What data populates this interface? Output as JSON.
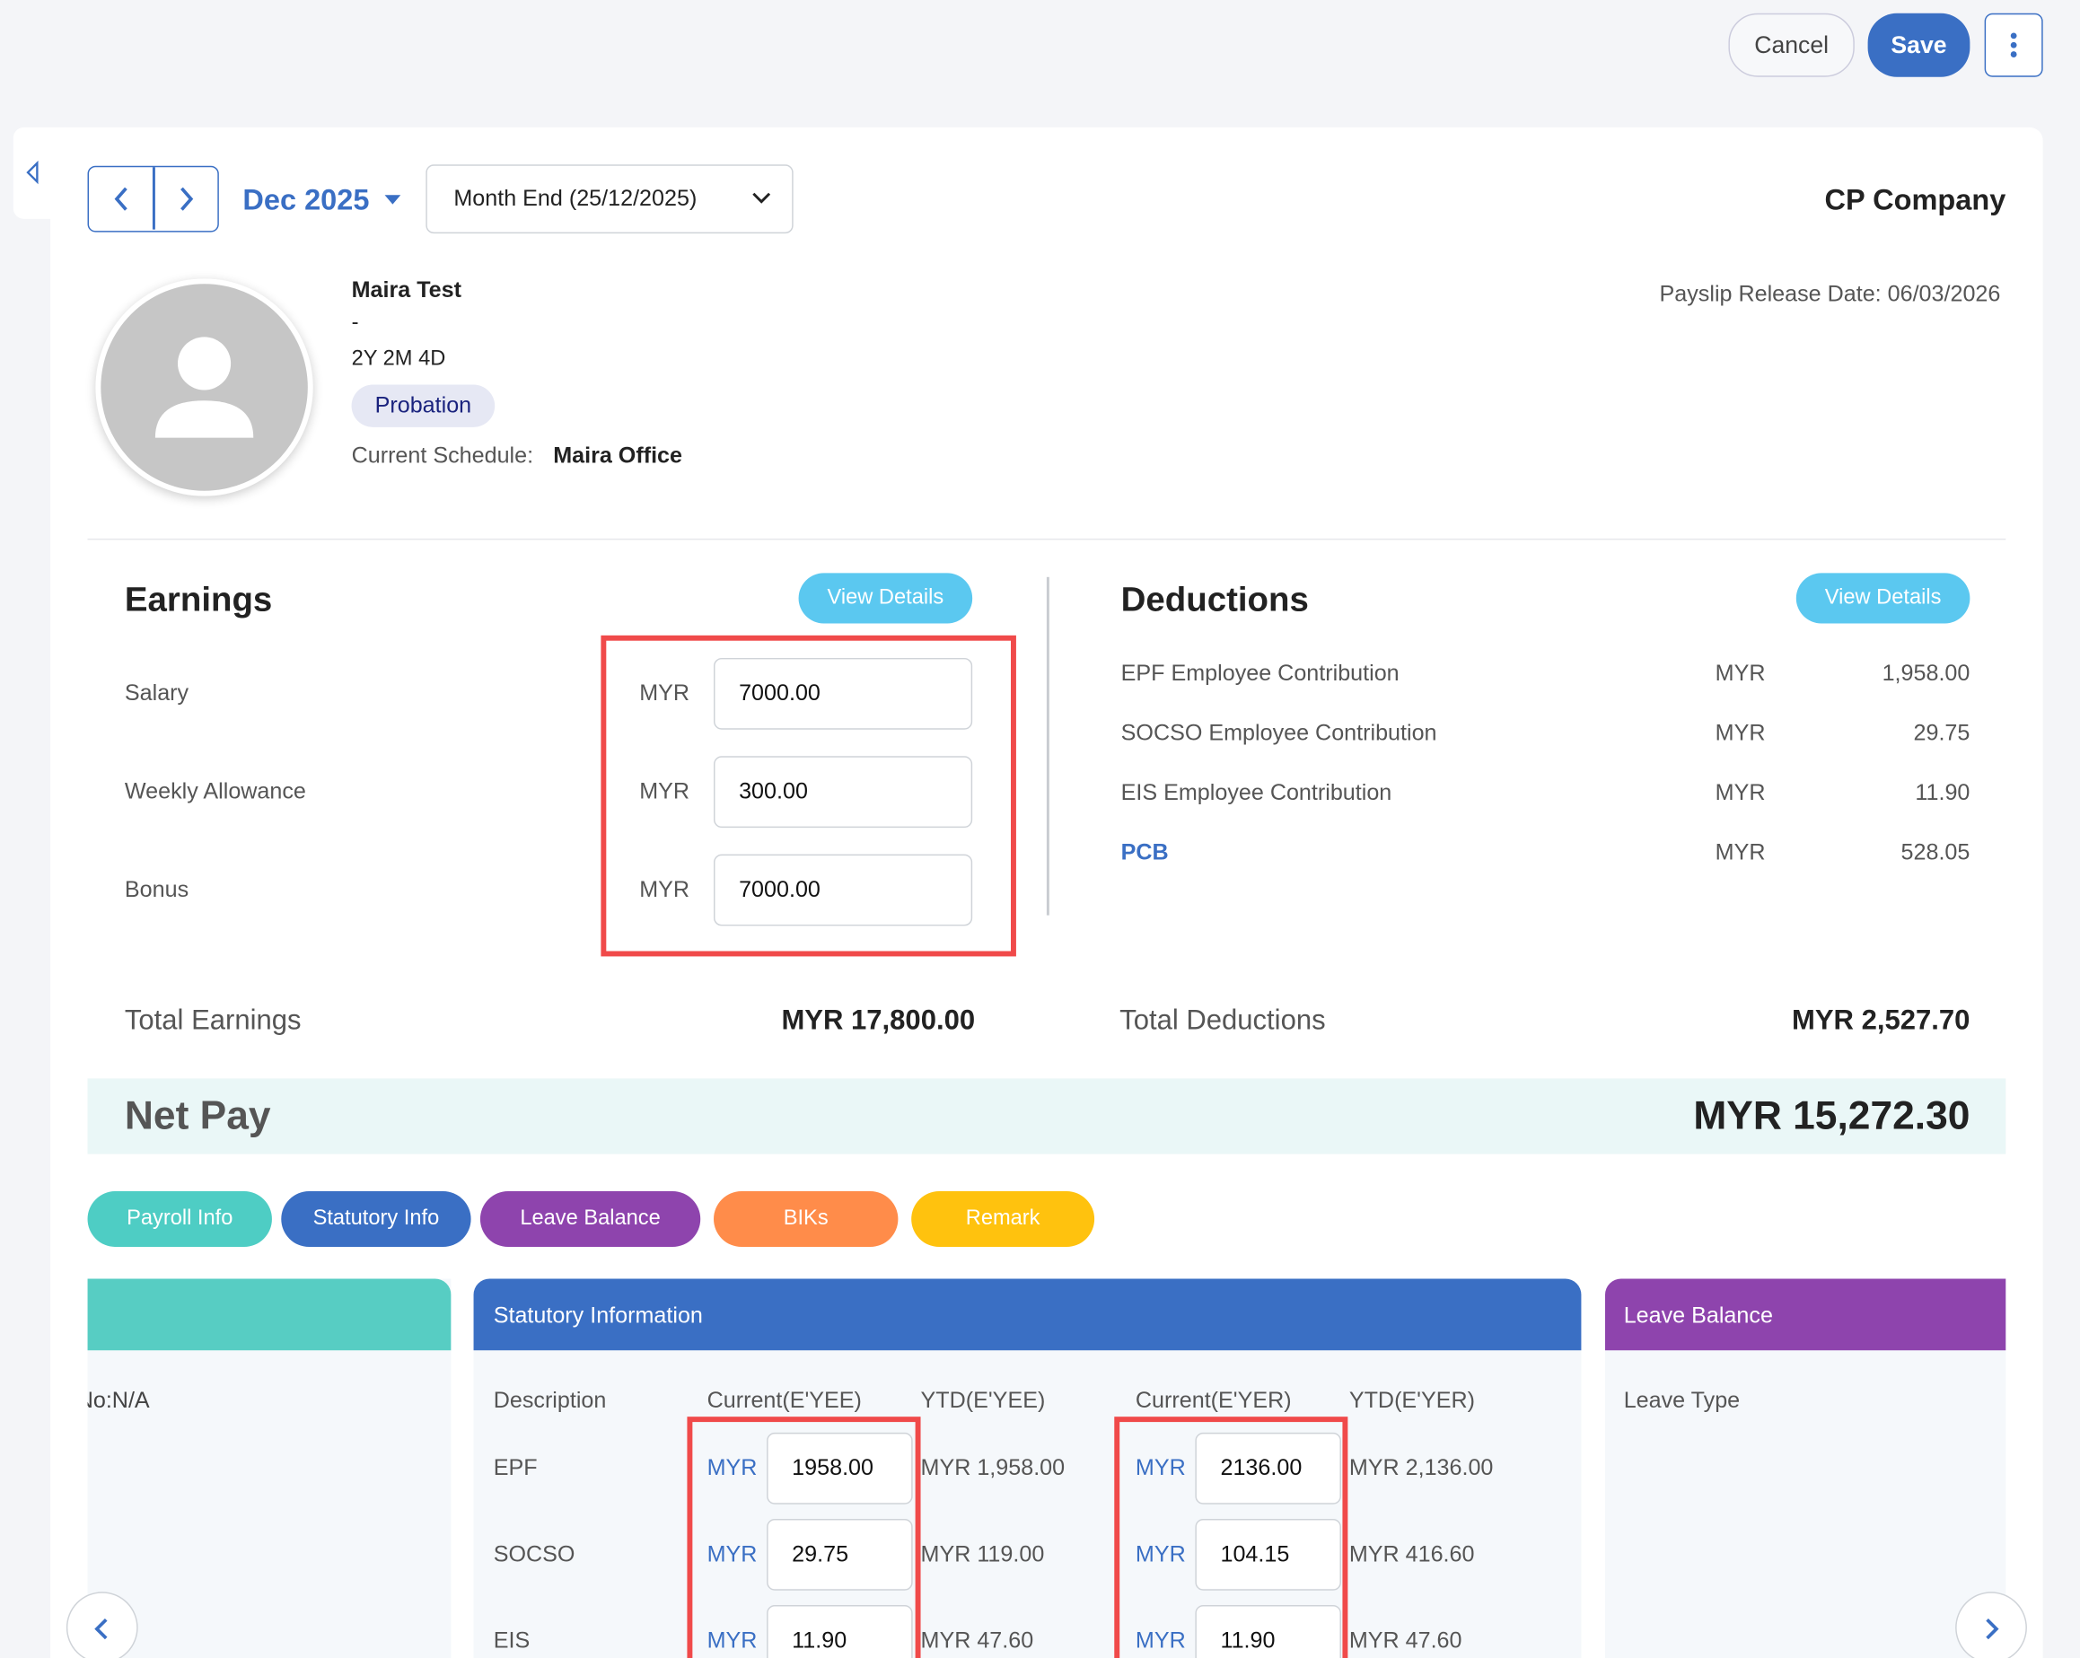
{
  "toolbar": {
    "cancel": "Cancel",
    "save": "Save"
  },
  "period": {
    "month": "Dec 2025",
    "run": "Month End (25/12/2025)"
  },
  "company": "CP Company",
  "release_date": "Payslip Release Date: 06/03/2026",
  "employee": {
    "name": "Maira Test",
    "position": "-",
    "tenure": "2Y 2M 4D",
    "status": "Probation",
    "schedule_label": "Current Schedule:",
    "schedule": "Maira Office"
  },
  "earnings": {
    "title": "Earnings",
    "view": "View Details",
    "items": [
      {
        "label": "Salary",
        "currency": "MYR",
        "value": "7000.00"
      },
      {
        "label": "Weekly Allowance",
        "currency": "MYR",
        "value": "300.00"
      },
      {
        "label": "Bonus",
        "currency": "MYR",
        "value": "7000.00"
      }
    ],
    "total_label": "Total Earnings",
    "total": "MYR 17,800.00"
  },
  "deductions": {
    "title": "Deductions",
    "view": "View Details",
    "items": [
      {
        "label": "EPF Employee Contribution",
        "currency": "MYR",
        "amount": "1,958.00"
      },
      {
        "label": "SOCSO Employee Contribution",
        "currency": "MYR",
        "amount": "29.75"
      },
      {
        "label": "EIS Employee Contribution",
        "currency": "MYR",
        "amount": "11.90"
      },
      {
        "label": "PCB",
        "currency": "MYR",
        "amount": "528.05"
      }
    ],
    "total_label": "Total Deductions",
    "total": "MYR 2,527.70"
  },
  "net_pay": {
    "label": "Net Pay",
    "amount": "MYR 15,272.30"
  },
  "tabs": [
    "Payroll Info",
    "Statutory Info",
    "Leave Balance",
    "BIKs",
    "Remark"
  ],
  "payroll_panel": {
    "text": "No:N/A"
  },
  "statutory": {
    "title": "Statutory Information",
    "headers": [
      "Description",
      "Current(E'YEE)",
      "YTD(E'YEE)",
      "Current(E'YER)",
      "YTD(E'YER)"
    ],
    "rows": [
      {
        "label": "EPF",
        "employee_currency": "MYR",
        "employee": "1958.00",
        "ytd_employee": "MYR 1,958.00",
        "employer_currency": "MYR",
        "employer": "2136.00",
        "ytd_employer": "MYR 2,136.00"
      },
      {
        "label": "SOCSO",
        "employee_currency": "MYR",
        "employee": "29.75",
        "ytd_employee": "MYR 119.00",
        "employer_currency": "MYR",
        "employer": "104.15",
        "ytd_employer": "MYR 416.60"
      },
      {
        "label": "EIS",
        "employee_currency": "MYR",
        "employee": "11.90",
        "ytd_employee": "MYR 47.60",
        "employer_currency": "MYR",
        "employer": "11.90",
        "ytd_employer": "MYR 47.60"
      }
    ]
  },
  "leave": {
    "title": "Leave Balance",
    "header": "Leave Type"
  }
}
